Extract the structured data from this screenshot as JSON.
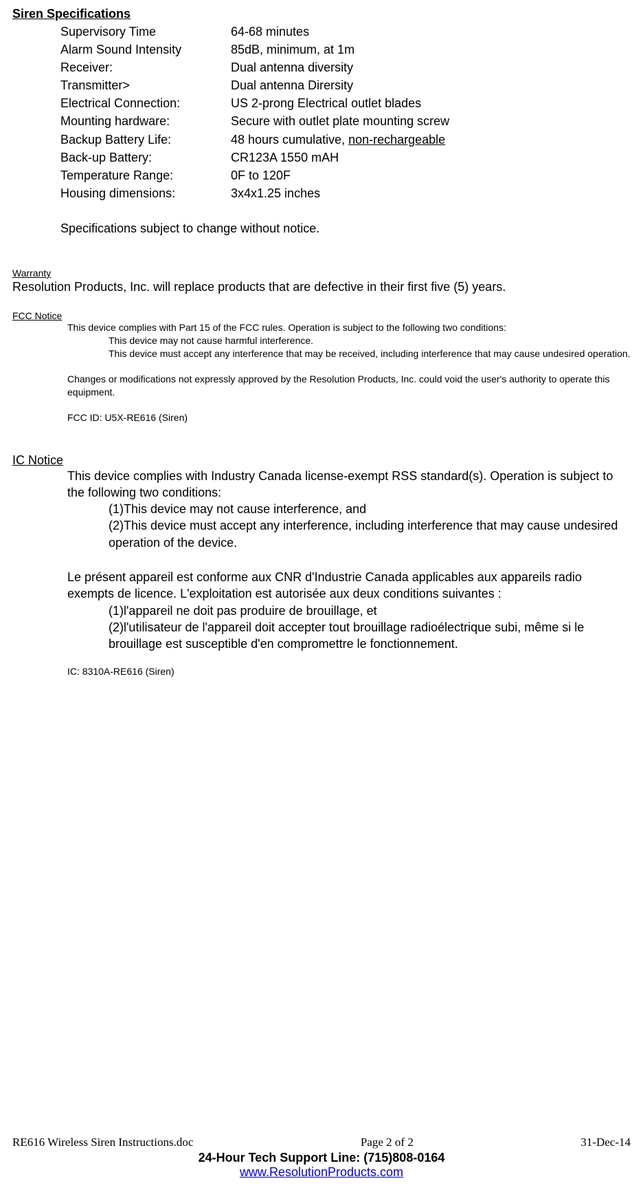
{
  "siren_specs": {
    "heading": "Siren Specifications",
    "rows": [
      {
        "label": "Supervisory Time",
        "value": "64-68 minutes"
      },
      {
        "label": "Alarm Sound Intensity",
        "value": "85dB, minimum, at 1m"
      },
      {
        "label": "Receiver:",
        "value": "Dual antenna diversity"
      },
      {
        "label": "Transmitter>",
        "value": "Dual antenna Dirersity"
      },
      {
        "label": "Electrical Connection:",
        "value": "US 2-prong Electrical outlet blades"
      },
      {
        "label": "Mounting hardware:",
        "value": "Secure with outlet plate mounting screw"
      },
      {
        "label": "Backup Battery Life:",
        "value_pre": "48 hours cumulative, ",
        "value_u": "non-rechargeable"
      },
      {
        "label": "Back-up Battery:",
        "value": "CR123A 1550 mAH"
      },
      {
        "label": "Temperature Range:",
        "value": "0F to 120F"
      },
      {
        "label": "Housing dimensions:",
        "value": "3x4x1.25 inches"
      }
    ],
    "note": "Specifications subject to change without notice."
  },
  "warranty": {
    "heading": "Warranty",
    "text": "Resolution Products, Inc. will replace products that are defective in their first five (5) years."
  },
  "fcc": {
    "heading": "FCC Notice",
    "intro": "This device complies with Part 15 of the FCC rules.  Operation is subject to the following two conditions:",
    "cond1": "This device may not cause harmful interference.",
    "cond2": "This device must accept any interference that may be received, including interference that may cause undesired operation.",
    "changes": "Changes or modifications not expressly approved by the Resolution Products, Inc. could void the user's authority to operate this equipment.",
    "id": "FCC ID: U5X-RE616   (Siren)"
  },
  "ic": {
    "heading": "IC Notice",
    "intro": "This device complies with Industry Canada license-exempt RSS standard(s). Operation is subject to the following two conditions:",
    "cond1": "(1)This device may not cause interference, and",
    "cond2": "(2)This device must accept any interference, including interference that may cause undesired operation of the device.",
    "intro_fr": "Le présent appareil est conforme aux CNR d'Industrie Canada applicables aux appareils radio exempts de licence. L'exploitation est autorisée aux deux conditions suivantes :",
    "cond1_fr": "(1)l'appareil ne doit pas produire de brouillage, et",
    "cond2_fr": "(2)l'utilisateur de l'appareil doit accepter tout brouillage radioélectrique subi, même si le brouillage est susceptible d'en compromettre le fonctionnement.",
    "id": "IC: 8310A-RE616   (Siren)"
  },
  "footer": {
    "doc_name": "RE616 Wireless Siren Instructions.doc",
    "page_pre": "Page ",
    "page_cur": "2",
    "page_mid": " of ",
    "page_total": "2",
    "date": "31-Dec-14",
    "support": "24-Hour Tech Support Line: (715)808-0164",
    "link": "www.ResolutionProducts.com"
  }
}
